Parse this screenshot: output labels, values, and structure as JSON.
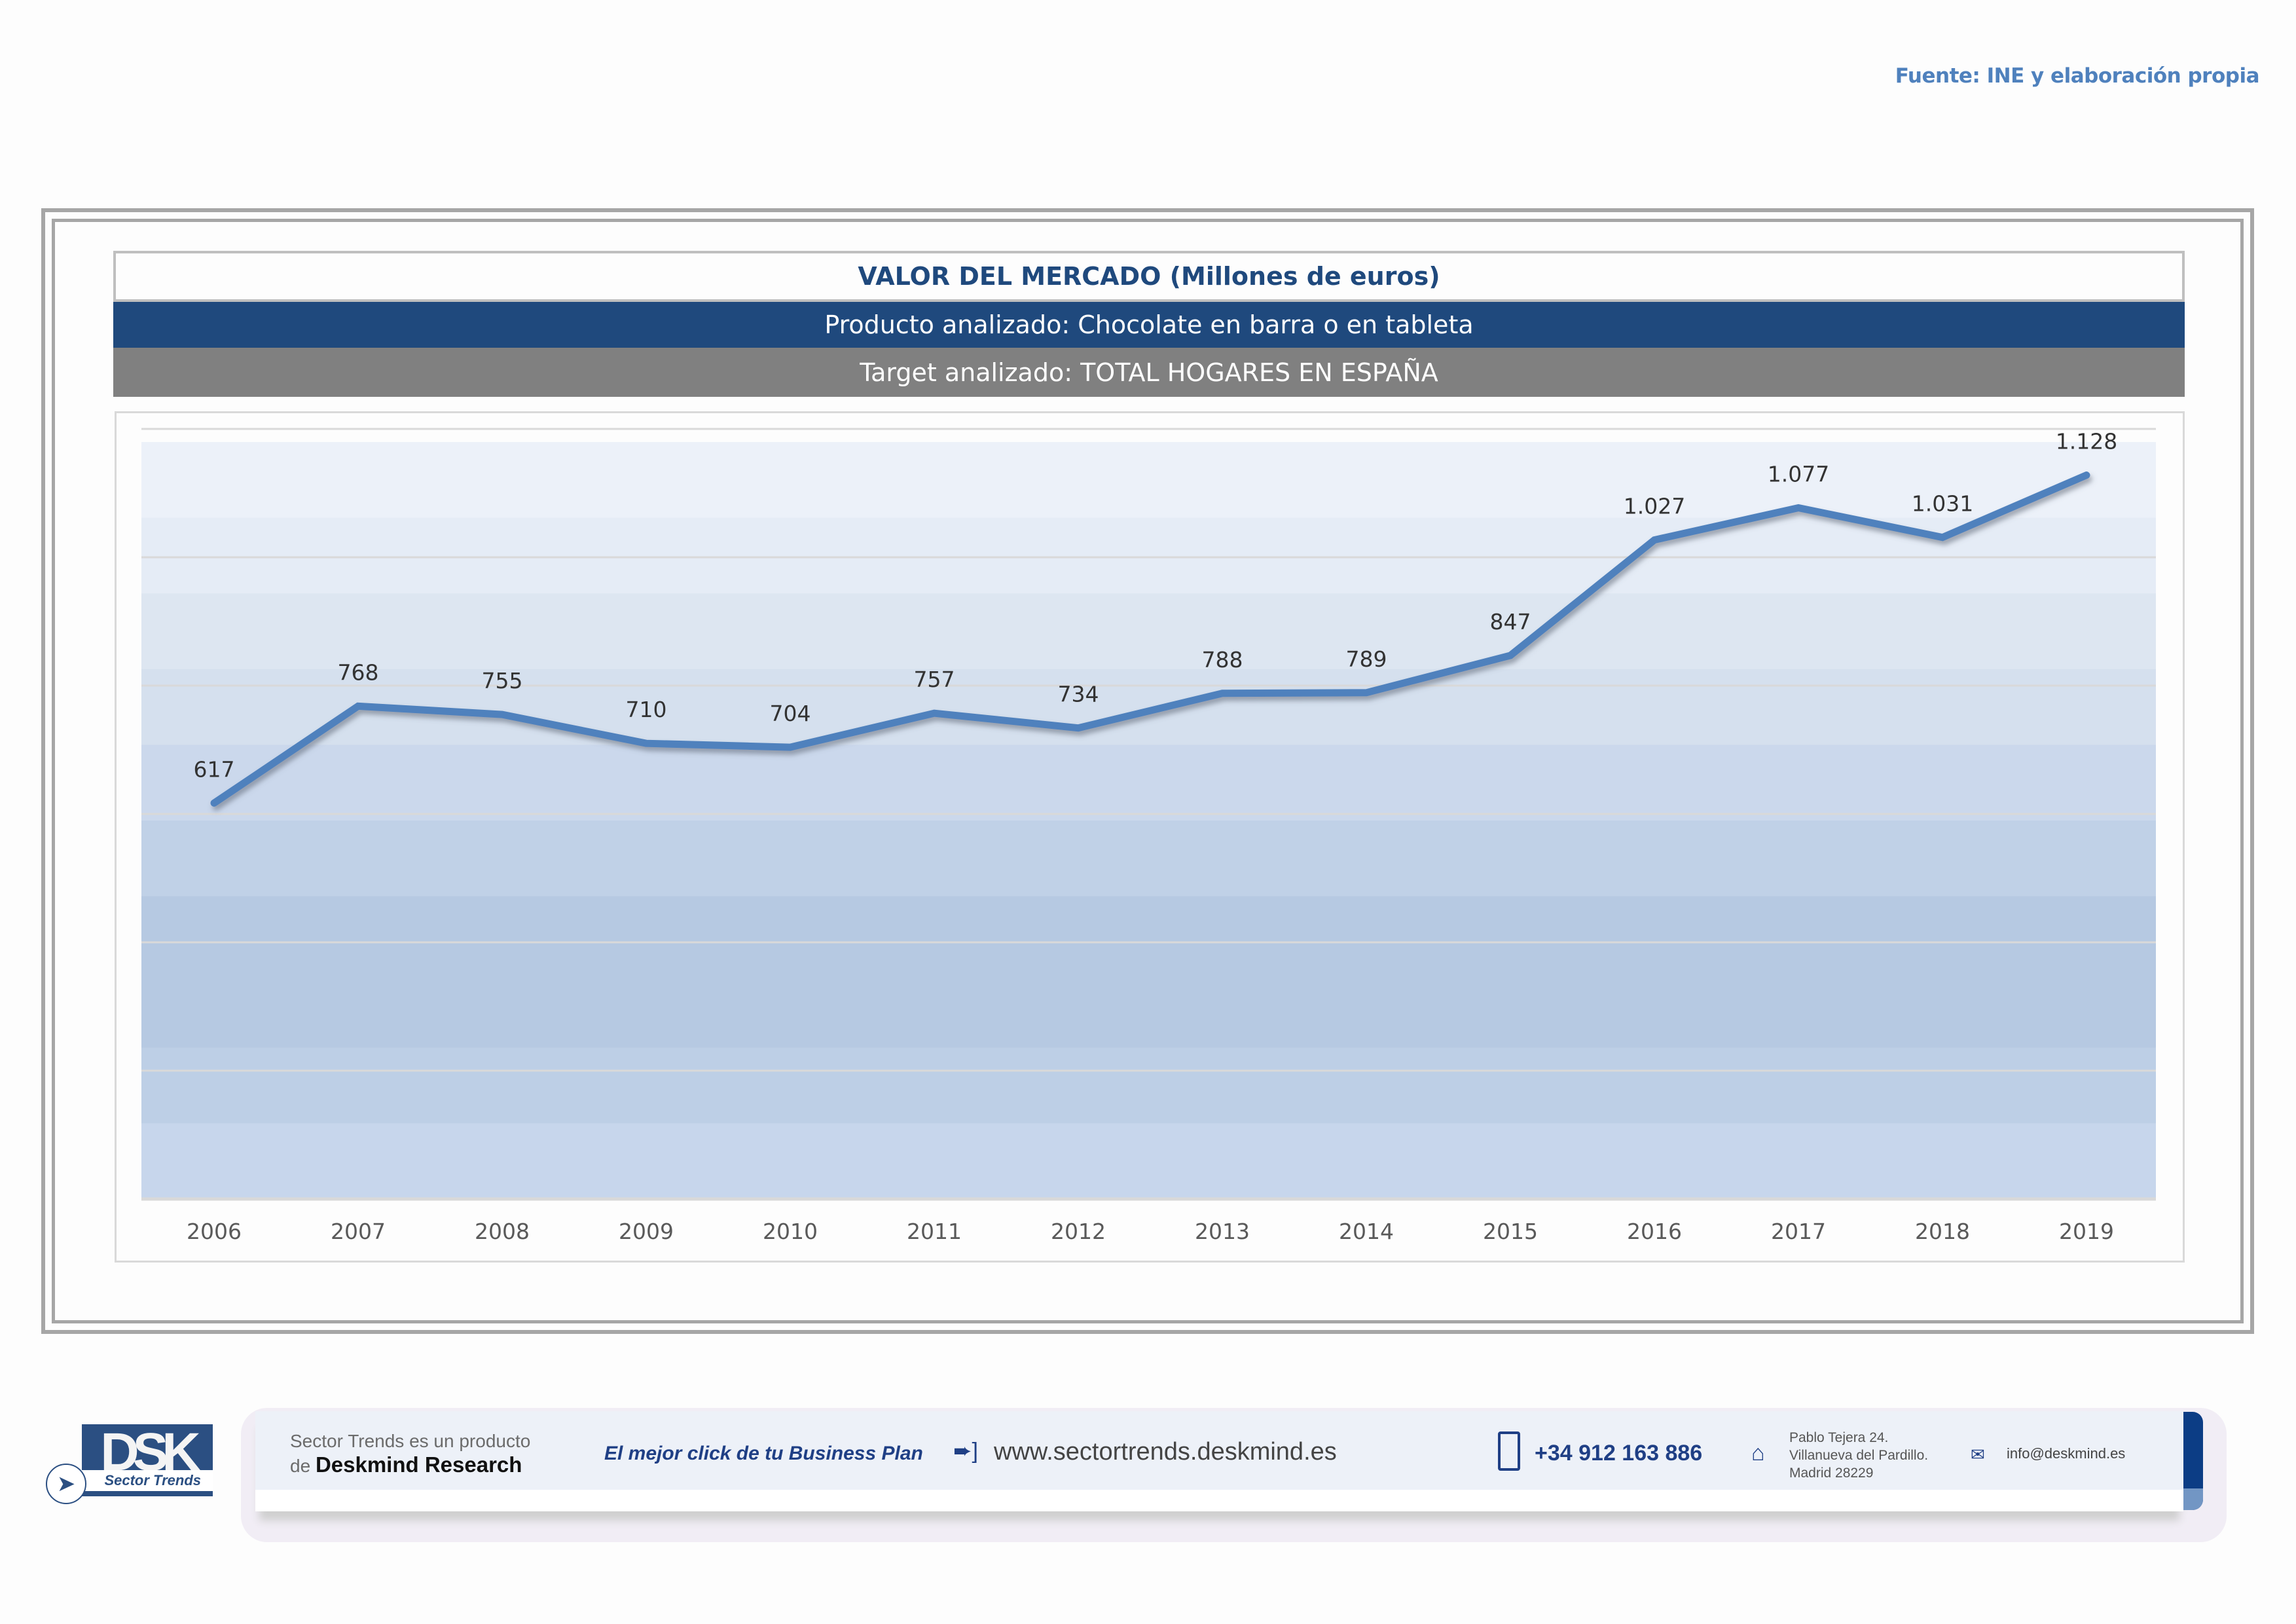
{
  "source_note": "Fuente: INE y elaboración propia",
  "header": {
    "title": "VALOR DEL MERCADO (Millones de euros)",
    "product": "Producto analizado: Chocolate en barra o en tableta",
    "target": "Target analizado: TOTAL HOGARES EN ESPAÑA"
  },
  "colors": {
    "title_text": "#1F497D",
    "product_bar": "#1F497D",
    "target_bar": "#808080",
    "line": "#4F81BD",
    "source_text": "#4F81BD"
  },
  "chart_data": {
    "type": "line",
    "title": "VALOR DEL MERCADO (Millones de euros)",
    "xlabel": "",
    "ylabel": "",
    "categories": [
      "2006",
      "2007",
      "2008",
      "2009",
      "2010",
      "2011",
      "2012",
      "2013",
      "2014",
      "2015",
      "2016",
      "2017",
      "2018",
      "2019"
    ],
    "series": [
      {
        "name": "Valor del mercado",
        "values": [
          617,
          768,
          755,
          710,
          704,
          757,
          734,
          788,
          789,
          847,
          1027,
          1077,
          1031,
          1128
        ],
        "labels": [
          "617",
          "768",
          "755",
          "710",
          "704",
          "757",
          "734",
          "788",
          "789",
          "847",
          "1.027",
          "1.077",
          "1.031",
          "1.128"
        ]
      }
    ],
    "ylim": [
      0,
      1200
    ],
    "ytick_step": 200,
    "yticks_visible": false,
    "grid": true,
    "legend": "none",
    "background": "gradient-bands"
  },
  "footer": {
    "logo": {
      "mark": "DSK",
      "sub": "Sector Trends",
      "icon": "cursor-arrow-icon"
    },
    "product_line1": "Sector Trends es un producto",
    "product_line2_prefix": "de",
    "product_line2_brand": "Deskmind Research",
    "slogan": "El mejor click de tu Business Plan",
    "website_icon": "arrow-right-icon",
    "website": "www.sectortrends.deskmind.es",
    "phone_icon": "mobile-phone-icon",
    "phone": "+34 912 163 886",
    "address_icon": "home-icon",
    "address_lines": [
      "Pablo Tejera 24.",
      "Villanueva del Pardillo.",
      "Madrid 28229"
    ],
    "email_icon": "envelope-icon",
    "email": "info@deskmind.es"
  }
}
